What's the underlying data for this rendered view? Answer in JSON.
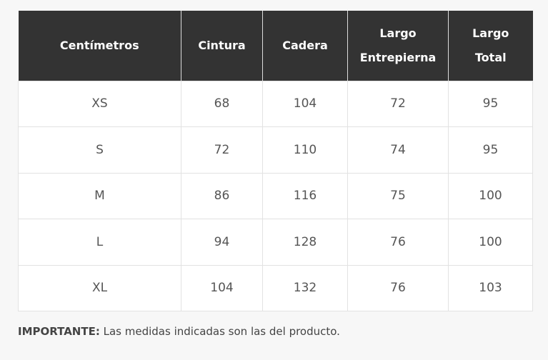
{
  "table": {
    "header": [
      "Centímetros",
      "Cintura",
      "Cadera",
      "Largo Entrepierna",
      "Largo Total"
    ],
    "rows": [
      [
        "XS",
        68,
        104,
        72,
        95
      ],
      [
        "S",
        72,
        110,
        74,
        95
      ],
      [
        "M",
        86,
        116,
        75,
        100
      ],
      [
        "L",
        94,
        128,
        76,
        100
      ],
      [
        "XL",
        104,
        132,
        76,
        103
      ]
    ]
  },
  "note": {
    "label": "IMPORTANTE:",
    "text": "Las medidas indicadas son las del producto."
  }
}
